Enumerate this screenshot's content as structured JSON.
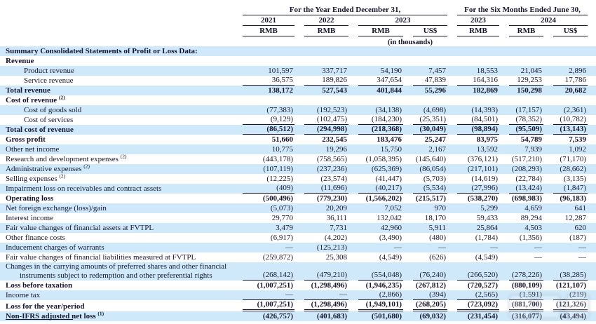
{
  "header": {
    "group1": "For the Year Ended December 31,",
    "group2": "For the Six Months Ended June 30,",
    "years": [
      "2021",
      "2022",
      "2023",
      "2023",
      "2024"
    ],
    "units": [
      "RMB",
      "RMB",
      "RMB",
      "US$",
      "RMB",
      "RMB",
      "US$"
    ],
    "note": "(in thousands)"
  },
  "rows": [
    {
      "label": "Summary Consolidated Statements of Profit or Loss Data:",
      "bold": true,
      "values": []
    },
    {
      "label": "Revenue",
      "bold": true,
      "values": []
    },
    {
      "label": "Product revenue",
      "indent": 1,
      "values": [
        "101,597",
        "337,717",
        "54,190",
        "7,457",
        "18,553",
        "21,045",
        "2,896"
      ]
    },
    {
      "label": "Service revenue",
      "indent": 1,
      "underline": "single",
      "values": [
        "36,575",
        "189,826",
        "347,654",
        "47,839",
        "164,316",
        "129,253",
        "17,786"
      ]
    },
    {
      "label": "Total revenue",
      "bold": true,
      "values": [
        "138,172",
        "527,543",
        "401,844",
        "55,296",
        "182,869",
        "150,298",
        "20,682"
      ]
    },
    {
      "label": "Cost of revenue",
      "sup": "(2)",
      "bold": true,
      "values": []
    },
    {
      "label": "Cost of goods sold",
      "indent": 1,
      "values": [
        "(77,383)",
        "(192,523)",
        "(34,138)",
        "(4,698)",
        "(14,393)",
        "(17,157)",
        "(2,361)"
      ]
    },
    {
      "label": "Cost of services",
      "indent": 1,
      "underline": "single",
      "values": [
        "(9,129)",
        "(102,475)",
        "(184,230)",
        "(25,351)",
        "(84,501)",
        "(78,352)",
        "(10,782)"
      ]
    },
    {
      "label": "Total cost of revenue",
      "bold": true,
      "underline": "single",
      "values": [
        "(86,512)",
        "(294,998)",
        "(218,368)",
        "(30,049)",
        "(98,894)",
        "(95,509)",
        "(13,143)"
      ]
    },
    {
      "label": "Gross profit",
      "bold": true,
      "values": [
        "51,660",
        "232,545",
        "183,476",
        "25,247",
        "83,975",
        "54,789",
        "7,539"
      ]
    },
    {
      "label": "Other net income",
      "values": [
        "10,775",
        "19,296",
        "15,750",
        "2,167",
        "13,592",
        "7,939",
        "1,092"
      ]
    },
    {
      "label": "Research and development expenses",
      "sup": "(2)",
      "values": [
        "(443,178)",
        "(758,565)",
        "(1,058,395)",
        "(145,640)",
        "(376,121)",
        "(517,210)",
        "(71,170)"
      ]
    },
    {
      "label": "Administrative expenses",
      "sup": "(2)",
      "values": [
        "(107,119)",
        "(237,236)",
        "(625,369)",
        "(86,054)",
        "(217,101)",
        "(208,293)",
        "(28,662)"
      ]
    },
    {
      "label": "Selling expenses",
      "sup": "(2)",
      "values": [
        "(12,225)",
        "(23,574)",
        "(41,447)",
        "(5,703)",
        "(14,619)",
        "(22,784)",
        "(3,135)"
      ]
    },
    {
      "label": "Impairment loss on receivables and contract assets",
      "underline": "single",
      "values": [
        "(409)",
        "(11,696)",
        "(40,217)",
        "(5,534)",
        "(27,996)",
        "(13,424)",
        "(1,847)"
      ]
    },
    {
      "label": "Operating loss",
      "bold": true,
      "values": [
        "(500,496)",
        "(779,230)",
        "(1,566,202)",
        "(215,517)",
        "(538,270)",
        "(698,983)",
        "(96,183)"
      ]
    },
    {
      "label": "Net foreign exchange (loss)/gain",
      "values": [
        "(5,073)",
        "20,209",
        "7,052",
        "970",
        "5,299",
        "4,659",
        "641"
      ]
    },
    {
      "label": "Interest income",
      "values": [
        "29,770",
        "36,111",
        "132,042",
        "18,170",
        "59,433",
        "89,294",
        "12,287"
      ]
    },
    {
      "label": "Fair value changes of financial assets at FVTPL",
      "values": [
        "3,479",
        "7,731",
        "42,960",
        "5,911",
        "25,864",
        "4,503",
        "620"
      ]
    },
    {
      "label": "Other finance costs",
      "values": [
        "(6,917)",
        "(4,202)",
        "(3,490)",
        "(480)",
        "(1,784)",
        "(1,356)",
        "(187)"
      ]
    },
    {
      "label": "Inducement charges of warrants",
      "values": [
        "—",
        "(125,213)",
        "—",
        "—",
        "—",
        "—",
        "—"
      ]
    },
    {
      "label": "Fair value changes of financial liabilities measured at FVTPL",
      "values": [
        "(259,872)",
        "25,308",
        "(4,549)",
        "(626)",
        "(4,549)",
        "—",
        "—"
      ]
    },
    {
      "label": "Changes in the carrying amounts of preferred shares and other financial",
      "label2": "instruments subject to redemption and other preferential rights",
      "underline": "single",
      "values": [
        "(268,142)",
        "(479,210)",
        "(554,048)",
        "(76,240)",
        "(266,520)",
        "(278,226)",
        "(38,285)"
      ]
    },
    {
      "label": "Loss before taxation",
      "bold": true,
      "values": [
        "(1,007,251)",
        "(1,298,496)",
        "(1,946,235)",
        "(267,812)",
        "(720,527)",
        "(880,109)",
        "(121,107)"
      ]
    },
    {
      "label": "Income tax",
      "underline": "single",
      "values": [
        "—",
        "—",
        "(2,866)",
        "(394)",
        "(2,565)",
        "(1,591)",
        "(219)"
      ]
    },
    {
      "label": "Loss for the year/period",
      "bold": true,
      "underline": "double",
      "values": [
        "(1,007,251)",
        "(1,298,496)",
        "(1,949,101)",
        "(268,205)",
        "(723,092)",
        "(881,700)",
        "(121,326)"
      ]
    },
    {
      "label": "Non-IFRS adjusted net loss",
      "sup": "(1)",
      "bold": true,
      "values": [
        "(426,757)",
        "(401,683)",
        "(501,680)",
        "(69,032)",
        "(231,454)",
        "(316,077)",
        "(43,494)"
      ]
    }
  ]
}
